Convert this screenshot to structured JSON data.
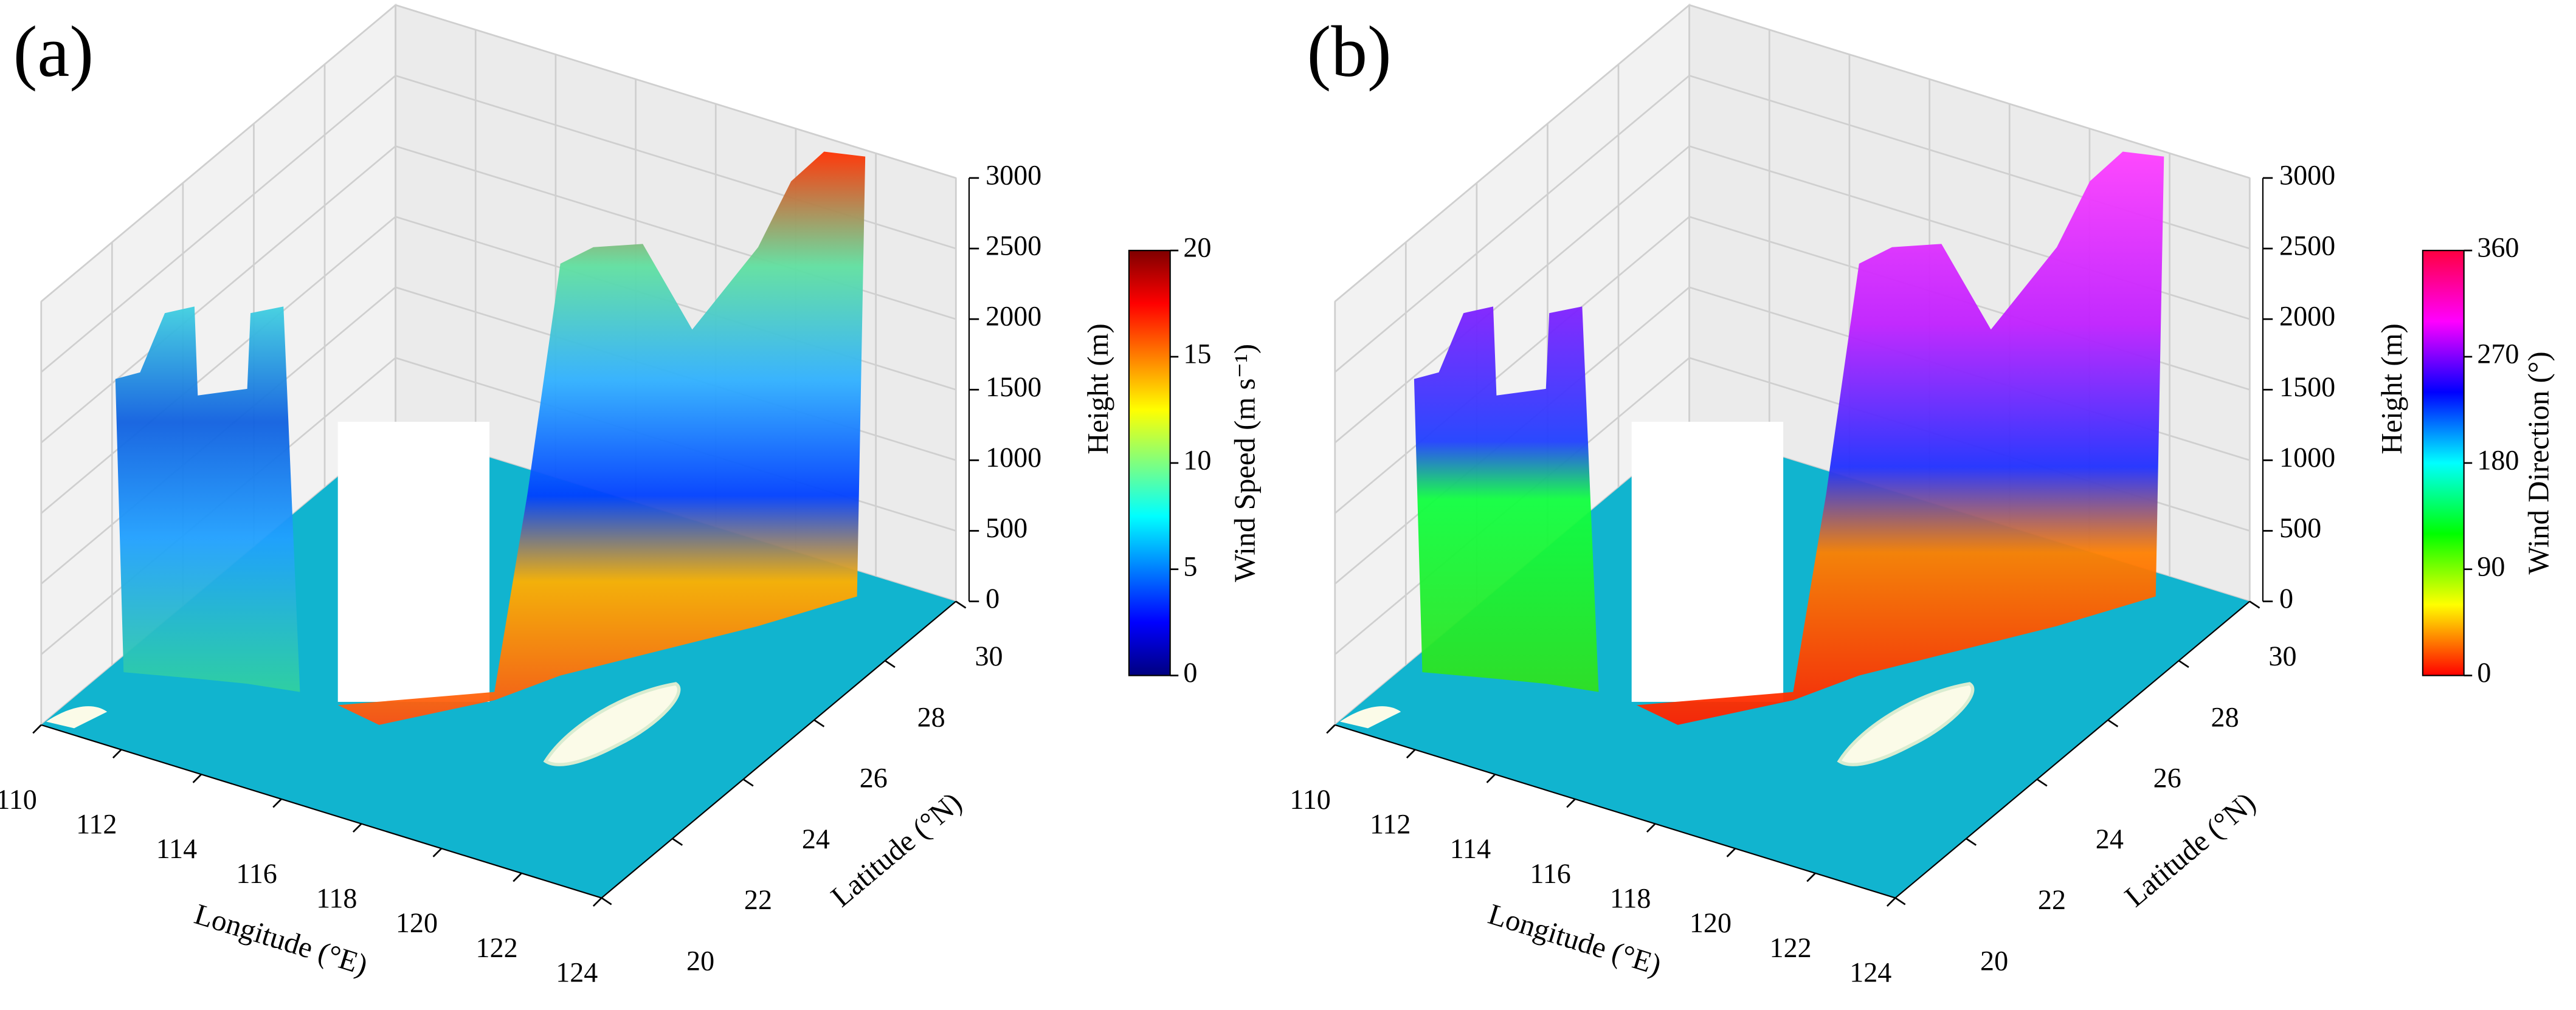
{
  "chart_data": [
    {
      "type": "scatter3d",
      "panel_label": "(a)",
      "xlabel": "Longitude (°E)",
      "ylabel": "Latitude (°N)",
      "zlabel": "Height (m)",
      "xlim": [
        110,
        124
      ],
      "xticks": [
        110,
        112,
        114,
        116,
        118,
        120,
        122,
        124
      ],
      "ylim": [
        20,
        30
      ],
      "yticks": [
        20,
        22,
        24,
        26,
        28,
        30
      ],
      "zlim": [
        0,
        3000
      ],
      "zticks": [
        0,
        500,
        1000,
        1500,
        2000,
        2500,
        3000
      ],
      "colorbar": {
        "label": "Wind Speed (m s⁻¹)",
        "lim": [
          0,
          20
        ],
        "ticks": [
          0,
          5,
          10,
          15,
          20
        ],
        "colormap": [
          "#00007f",
          "#0000ff",
          "#007fff",
          "#00ffff",
          "#7fff7f",
          "#ffff00",
          "#ff7f00",
          "#ff0000",
          "#7f0000"
        ]
      }
    },
    {
      "type": "scatter3d",
      "panel_label": "(b)",
      "xlabel": "Longitude (°E)",
      "ylabel": "Latitude (°N)",
      "zlabel": "Height (m)",
      "xlim": [
        110,
        124
      ],
      "xticks": [
        110,
        112,
        114,
        116,
        118,
        120,
        122,
        124
      ],
      "ylim": [
        20,
        30
      ],
      "yticks": [
        20,
        22,
        24,
        26,
        28,
        30
      ],
      "zlim": [
        0,
        3000
      ],
      "zticks": [
        0,
        500,
        1000,
        1500,
        2000,
        2500,
        3000
      ],
      "colorbar": {
        "label": "Wind Direction (°)",
        "lim": [
          0,
          360
        ],
        "ticks": [
          0,
          90,
          180,
          270,
          360
        ],
        "colormap": [
          "#ff0000",
          "#ffff00",
          "#00ff00",
          "#00ffff",
          "#0000ff",
          "#ff00ff",
          "#ff0040"
        ]
      }
    }
  ]
}
